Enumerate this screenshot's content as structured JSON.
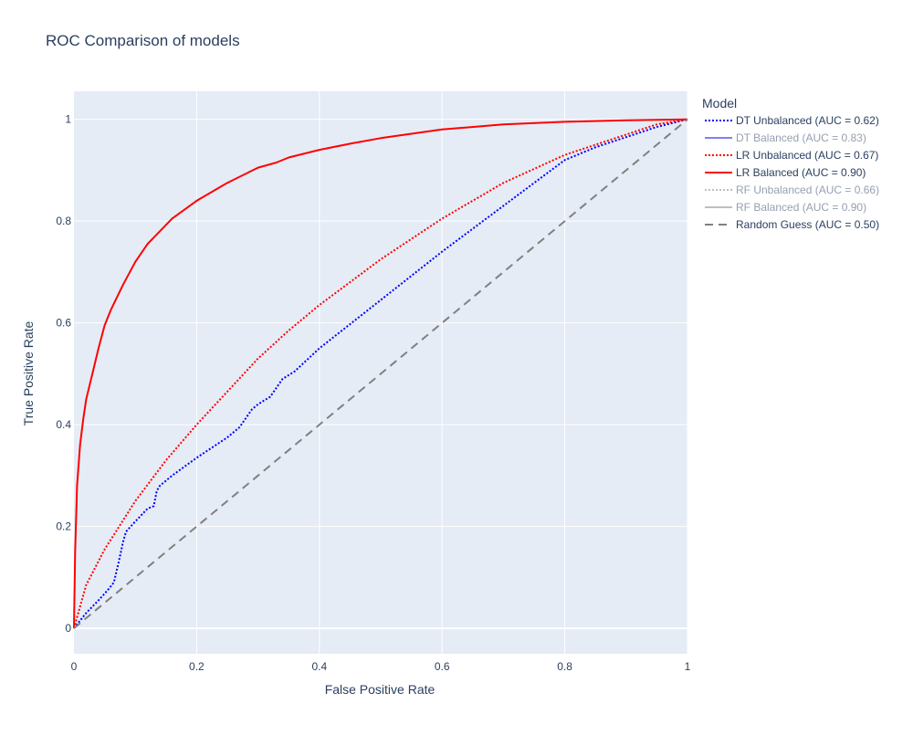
{
  "chart_data": {
    "type": "line",
    "title": "ROC Comparison of models",
    "xlabel": "False Positive Rate",
    "ylabel": "True Positive Rate",
    "xlim": [
      0,
      1
    ],
    "ylim": [
      -0.05,
      1.055
    ],
    "xticks": [
      {
        "value": 0,
        "label": "0"
      },
      {
        "value": 0.2,
        "label": "0.2"
      },
      {
        "value": 0.4,
        "label": "0.4"
      },
      {
        "value": 0.6,
        "label": "0.6"
      },
      {
        "value": 0.8,
        "label": "0.8"
      },
      {
        "value": 1,
        "label": "1"
      }
    ],
    "yticks": [
      {
        "value": 0,
        "label": "0"
      },
      {
        "value": 0.2,
        "label": "0.2"
      },
      {
        "value": 0.4,
        "label": "0.4"
      },
      {
        "value": 0.6,
        "label": "0.6"
      },
      {
        "value": 0.8,
        "label": "0.8"
      },
      {
        "value": 1,
        "label": "1"
      }
    ],
    "grid": true,
    "legend_title": "Model",
    "legend_position": "right",
    "plot_background": "#e5ecf6",
    "series": [
      {
        "name": "DT Unbalanced (AUC = 0.62)",
        "color": "#0000ff",
        "dash": "dot",
        "visible": true,
        "x": [
          0,
          0.02,
          0.04,
          0.055,
          0.065,
          0.07,
          0.072,
          0.08,
          0.085,
          0.1,
          0.12,
          0.13,
          0.135,
          0.14,
          0.16,
          0.2,
          0.25,
          0.27,
          0.29,
          0.3,
          0.32,
          0.34,
          0.36,
          0.4,
          0.5,
          0.6,
          0.7,
          0.8,
          0.85,
          0.9,
          0.95,
          1.0
        ],
        "y": [
          0,
          0.03,
          0.055,
          0.075,
          0.09,
          0.115,
          0.125,
          0.17,
          0.19,
          0.21,
          0.235,
          0.24,
          0.27,
          0.28,
          0.3,
          0.335,
          0.375,
          0.395,
          0.43,
          0.44,
          0.455,
          0.49,
          0.505,
          0.55,
          0.645,
          0.74,
          0.83,
          0.92,
          0.945,
          0.965,
          0.985,
          1.0
        ]
      },
      {
        "name": "DT Balanced (AUC = 0.83)",
        "color": "#0000ff",
        "dash": "solid",
        "visible": false,
        "x": [
          0,
          1
        ],
        "y": [
          0,
          1
        ]
      },
      {
        "name": "LR Unbalanced (AUC = 0.67)",
        "color": "#ff0000",
        "dash": "dot",
        "visible": true,
        "x": [
          0,
          0.02,
          0.05,
          0.1,
          0.15,
          0.2,
          0.25,
          0.3,
          0.35,
          0.4,
          0.5,
          0.6,
          0.7,
          0.8,
          0.9,
          0.95,
          1.0
        ],
        "y": [
          0,
          0.085,
          0.155,
          0.25,
          0.33,
          0.4,
          0.465,
          0.53,
          0.585,
          0.635,
          0.725,
          0.805,
          0.875,
          0.93,
          0.97,
          0.99,
          1.0
        ]
      },
      {
        "name": "LR Balanced (AUC = 0.90)",
        "color": "#ff0000",
        "dash": "solid",
        "visible": true,
        "x": [
          0,
          0.002,
          0.005,
          0.01,
          0.015,
          0.02,
          0.03,
          0.04,
          0.05,
          0.06,
          0.07,
          0.08,
          0.1,
          0.12,
          0.14,
          0.16,
          0.2,
          0.25,
          0.3,
          0.33,
          0.35,
          0.4,
          0.45,
          0.5,
          0.6,
          0.7,
          0.8,
          0.9,
          1.0
        ],
        "y": [
          0,
          0.15,
          0.28,
          0.36,
          0.41,
          0.45,
          0.5,
          0.55,
          0.595,
          0.625,
          0.65,
          0.675,
          0.72,
          0.755,
          0.78,
          0.805,
          0.84,
          0.875,
          0.905,
          0.915,
          0.925,
          0.94,
          0.952,
          0.963,
          0.98,
          0.99,
          0.995,
          0.998,
          1.0
        ]
      },
      {
        "name": "RF Unbalanced (AUC = 0.66)",
        "color": "#808080",
        "dash": "dot",
        "visible": false,
        "x": [
          0,
          1
        ],
        "y": [
          0,
          1
        ]
      },
      {
        "name": "RF Balanced (AUC = 0.90)",
        "color": "#808080",
        "dash": "solid",
        "visible": false,
        "x": [
          0,
          1
        ],
        "y": [
          0,
          1
        ]
      },
      {
        "name": "Random Guess (AUC = 0.50)",
        "color": "#808080",
        "dash": "dash",
        "visible": true,
        "x": [
          0,
          1
        ],
        "y": [
          0,
          1
        ]
      }
    ]
  }
}
